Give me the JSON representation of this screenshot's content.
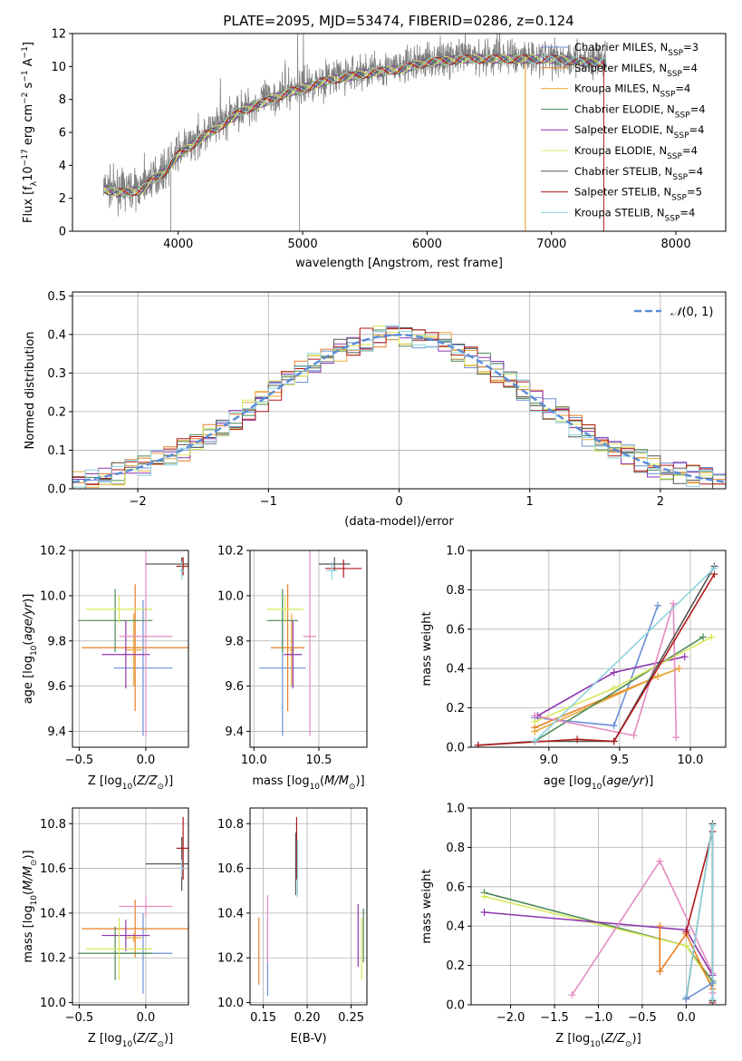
{
  "figure": {
    "title": "PLATE=2095, MJD=53474, FIBERID=0286, z=0.124"
  },
  "colors": {
    "chabrier_miles": "#6b8fd6",
    "salpeter_miles": "#e87e24",
    "kroupa_miles": "#e8a838",
    "chabrier_elodie": "#4d8a55",
    "salpeter_elodie": "#8e35b0",
    "kroupa_elodie": "#d9e85a",
    "chabrier_stelib": "#555555",
    "salpeter_stelib": "#b01818",
    "kroupa_stelib": "#8ed2dd",
    "pink": "#e58ac0",
    "data_gray": "#7f7f7f",
    "normal_curve": "#5b8ed8"
  },
  "chart_data": [
    {
      "id": "spectrum",
      "type": "line",
      "xlabel": "wavelength [Angstrom, rest frame]",
      "ylabel": "Flux [f_λ 10^-17 erg cm^-2 s^-1 A^-1]",
      "xlim": [
        3150,
        8400
      ],
      "ylim": [
        0,
        12
      ],
      "xticks": [
        4000,
        5000,
        6000,
        7000,
        8000
      ],
      "yticks": [
        0,
        2,
        4,
        6,
        8,
        10,
        12
      ],
      "legend_position": "right",
      "continuum": {
        "x": [
          3400,
          3500,
          3700,
          3800,
          3900,
          3950,
          4000,
          4100,
          4200,
          4300,
          4500,
          4700,
          4900,
          5000,
          5200,
          5500,
          5800,
          6000,
          6300,
          6600,
          7000,
          7300,
          7400
        ],
        "y": [
          2.7,
          2.5,
          2.6,
          3.3,
          3.8,
          4.3,
          4.8,
          5.3,
          5.9,
          6.3,
          7.4,
          8.0,
          8.6,
          8.8,
          9.3,
          9.7,
          10.0,
          10.4,
          10.6,
          10.6,
          10.6,
          10.4,
          10.4
        ]
      },
      "legend": [
        {
          "label": "Chabrier MILES, N_SSP=3",
          "base": "Chabrier MILES, N",
          "sub": "SSP",
          "tail": "=3",
          "color_key": "chabrier_miles"
        },
        {
          "label": "Salpeter MILES, N_SSP=4",
          "base": "Salpeter MILES, N",
          "sub": "SSP",
          "tail": "=4",
          "color_key": "salpeter_miles"
        },
        {
          "label": "Kroupa MILES, N_SSP=4",
          "base": "Kroupa MILES, N",
          "sub": "SSP",
          "tail": "=4",
          "color_key": "kroupa_miles"
        },
        {
          "label": "Chabrier ELODIE, N_SSP=4",
          "base": "Chabrier ELODIE, N",
          "sub": "SSP",
          "tail": "=4",
          "color_key": "chabrier_elodie"
        },
        {
          "label": "Salpeter ELODIE, N_SSP=4",
          "base": "Salpeter ELODIE, N",
          "sub": "SSP",
          "tail": "=4",
          "color_key": "salpeter_elodie"
        },
        {
          "label": "Kroupa ELODIE, N_SSP=4",
          "base": "Kroupa ELODIE, N",
          "sub": "SSP",
          "tail": "=4",
          "color_key": "kroupa_elodie"
        },
        {
          "label": "Chabrier STELIB, N_SSP=4",
          "base": "Chabrier STELIB, N",
          "sub": "SSP",
          "tail": "=4",
          "color_key": "chabrier_stelib"
        },
        {
          "label": "Salpeter STELIB, N_SSP=5",
          "base": "Salpeter STELIB, N",
          "sub": "SSP",
          "tail": "=5",
          "color_key": "salpeter_stelib"
        },
        {
          "label": "Kroupa STELIB, N_SSP=4",
          "base": "Kroupa STELIB, N",
          "sub": "SSP",
          "tail": "=4",
          "color_key": "kroupa_stelib"
        }
      ]
    },
    {
      "id": "residuals",
      "type": "histogram",
      "xlabel": "(data-model)/error",
      "ylabel": "Normed distribution",
      "xlim": [
        -2.5,
        2.5
      ],
      "ylim": [
        0,
        0.51
      ],
      "xticks": [
        -2,
        -1,
        0,
        1,
        2
      ],
      "yticks": [
        0.0,
        0.1,
        0.2,
        0.3,
        0.4,
        0.5
      ],
      "grid": true,
      "legend_position": "top-right",
      "legend": [
        {
          "label": "N(0, 1)",
          "color_key": "normal_curve"
        }
      ],
      "bin_width": 0.1,
      "normal_curve": {
        "mean": 0,
        "sigma": 1
      }
    },
    {
      "id": "age_vs_Z",
      "type": "errorbar",
      "xlabel": "Z [log10(Z/Z_sun)]",
      "ylabel": "age [log10(age/yr)]",
      "xlim": [
        -0.55,
        0.32
      ],
      "ylim": [
        9.33,
        10.2
      ],
      "xticks": [
        -0.5,
        0.0
      ],
      "yticks": [
        9.4,
        9.6,
        9.8,
        10.0,
        10.2
      ],
      "grid": true,
      "points": [
        {
          "color_key": "chabrier_miles",
          "x": -0.02,
          "xerr": 0.22,
          "y": 9.68,
          "yerr": 0.3
        },
        {
          "color_key": "salpeter_miles",
          "x": -0.08,
          "xerr": 0.4,
          "y": 9.77,
          "yerr": 0.28
        },
        {
          "color_key": "kroupa_miles",
          "x": -0.09,
          "xerr": 0.06,
          "y": 9.76,
          "yerr": 0.16
        },
        {
          "color_key": "chabrier_elodie",
          "x": -0.23,
          "xerr": 0.28,
          "y": 9.89,
          "yerr": 0.14
        },
        {
          "color_key": "salpeter_elodie",
          "x": -0.15,
          "xerr": 0.18,
          "y": 9.74,
          "yerr": 0.15
        },
        {
          "color_key": "kroupa_elodie",
          "x": -0.2,
          "xerr": 0.25,
          "y": 9.94,
          "yerr": 0.06
        },
        {
          "color_key": "pink",
          "x": -0.0,
          "xerr": 0.2,
          "y": 9.82,
          "yerr": 0.44
        },
        {
          "color_key": "chabrier_stelib",
          "x": 0.27,
          "xerr": 0.27,
          "y": 10.14,
          "yerr": 0.03
        },
        {
          "color_key": "salpeter_stelib",
          "x": 0.28,
          "xerr": 0.05,
          "y": 10.13,
          "yerr": 0.04
        },
        {
          "color_key": "kroupa_stelib",
          "x": 0.27,
          "xerr": 0.02,
          "y": 10.11,
          "yerr": 0.04
        }
      ]
    },
    {
      "id": "age_vs_mass",
      "type": "errorbar",
      "xlabel": "mass [log10(M/M_sun)]",
      "ylabel": "",
      "xlim": [
        9.97,
        10.87
      ],
      "ylim": [
        9.33,
        10.2
      ],
      "xticks": [
        10.0,
        10.5
      ],
      "yticks": [
        9.4,
        9.6,
        9.8,
        10.0,
        10.2
      ],
      "grid": true,
      "points": [
        {
          "color_key": "chabrier_miles",
          "x": 10.22,
          "xerr": 0.18,
          "y": 9.68,
          "yerr": 0.3
        },
        {
          "color_key": "salpeter_miles",
          "x": 10.26,
          "xerr": 0.13,
          "y": 9.77,
          "yerr": 0.28
        },
        {
          "color_key": "kroupa_miles",
          "x": 10.29,
          "xerr": 0.02,
          "y": 9.76,
          "yerr": 0.16
        },
        {
          "color_key": "chabrier_elodie",
          "x": 10.22,
          "xerr": 0.12,
          "y": 9.89,
          "yerr": 0.14
        },
        {
          "color_key": "salpeter_elodie",
          "x": 10.3,
          "xerr": 0.07,
          "y": 9.74,
          "yerr": 0.15
        },
        {
          "color_key": "kroupa_elodie",
          "x": 10.24,
          "xerr": 0.14,
          "y": 9.94,
          "yerr": 0.06
        },
        {
          "color_key": "pink",
          "x": 10.43,
          "xerr": 0.05,
          "y": 9.82,
          "yerr": 0.44
        },
        {
          "color_key": "chabrier_stelib",
          "x": 10.62,
          "xerr": 0.12,
          "y": 10.14,
          "yerr": 0.03
        },
        {
          "color_key": "salpeter_stelib",
          "x": 10.69,
          "xerr": 0.14,
          "y": 10.12,
          "yerr": 0.04
        },
        {
          "color_key": "kroupa_stelib",
          "x": 10.6,
          "xerr": 0.04,
          "y": 10.11,
          "yerr": 0.04
        }
      ]
    },
    {
      "id": "weight_vs_age",
      "type": "line",
      "xlabel": "age [log10(age/yr)]",
      "ylabel": "mass weight",
      "xlim": [
        8.45,
        10.25
      ],
      "ylim": [
        0.0,
        1.0
      ],
      "xticks": [
        9.0,
        9.5,
        10.0
      ],
      "yticks": [
        0.0,
        0.2,
        0.4,
        0.6,
        0.8,
        1.0
      ],
      "grid": true,
      "series": [
        {
          "color_key": "chabrier_miles",
          "x": [
            8.9,
            9.46,
            9.77
          ],
          "y": [
            0.15,
            0.11,
            0.72
          ]
        },
        {
          "color_key": "salpeter_miles",
          "x": [
            8.9,
            9.77,
            9.92
          ],
          "y": [
            0.1,
            0.36,
            0.4
          ]
        },
        {
          "color_key": "kroupa_miles",
          "x": [
            8.9,
            9.77,
            9.92
          ],
          "y": [
            0.08,
            0.36,
            0.4
          ]
        },
        {
          "color_key": "chabrier_elodie",
          "x": [
            8.9,
            10.09
          ],
          "y": [
            0.03,
            0.56
          ]
        },
        {
          "color_key": "salpeter_elodie",
          "x": [
            8.92,
            9.46,
            9.96
          ],
          "y": [
            0.16,
            0.38,
            0.46
          ]
        },
        {
          "color_key": "kroupa_elodie",
          "x": [
            8.9,
            9.46,
            10.15
          ],
          "y": [
            0.13,
            0.3,
            0.56
          ]
        },
        {
          "color_key": "pink",
          "x": [
            8.9,
            9.6,
            9.88,
            9.9
          ],
          "y": [
            0.16,
            0.06,
            0.73,
            0.05
          ]
        },
        {
          "color_key": "chabrier_stelib",
          "x": [
            8.5,
            8.9,
            9.46,
            10.17
          ],
          "y": [
            0.01,
            0.03,
            0.03,
            0.92
          ]
        },
        {
          "color_key": "salpeter_stelib",
          "x": [
            8.5,
            9.2,
            9.46,
            10.17
          ],
          "y": [
            0.01,
            0.04,
            0.03,
            0.88
          ]
        },
        {
          "color_key": "kroupa_stelib",
          "x": [
            8.9,
            10.17
          ],
          "y": [
            0.03,
            0.91
          ]
        }
      ]
    },
    {
      "id": "mass_vs_Z",
      "type": "errorbar",
      "xlabel": "Z [log10(Z/Z_sun)]",
      "ylabel": "mass [log10(M/M_sun)]",
      "xlim": [
        -0.55,
        0.32
      ],
      "ylim": [
        9.99,
        10.87
      ],
      "xticks": [
        -0.5,
        0.0
      ],
      "yticks": [
        10.0,
        10.2,
        10.4,
        10.6,
        10.8
      ],
      "grid": true,
      "points": [
        {
          "color_key": "chabrier_miles",
          "x": -0.02,
          "xerr": 0.22,
          "y": 10.22,
          "yerr": 0.18
        },
        {
          "color_key": "salpeter_miles",
          "x": -0.08,
          "xerr": 0.4,
          "y": 10.33,
          "yerr": 0.13
        },
        {
          "color_key": "kroupa_miles",
          "x": -0.09,
          "xerr": 0.06,
          "y": 10.29,
          "yerr": 0.02
        },
        {
          "color_key": "chabrier_elodie",
          "x": -0.23,
          "xerr": 0.28,
          "y": 10.22,
          "yerr": 0.12
        },
        {
          "color_key": "salpeter_elodie",
          "x": -0.15,
          "xerr": 0.18,
          "y": 10.3,
          "yerr": 0.07
        },
        {
          "color_key": "kroupa_elodie",
          "x": -0.2,
          "xerr": 0.25,
          "y": 10.24,
          "yerr": 0.14
        },
        {
          "color_key": "pink",
          "x": -0.0,
          "xerr": 0.2,
          "y": 10.43,
          "yerr": 0.05
        },
        {
          "color_key": "chabrier_stelib",
          "x": 0.27,
          "xerr": 0.27,
          "y": 10.62,
          "yerr": 0.12
        },
        {
          "color_key": "salpeter_stelib",
          "x": 0.28,
          "xerr": 0.05,
          "y": 10.69,
          "yerr": 0.14
        },
        {
          "color_key": "kroupa_stelib",
          "x": 0.27,
          "xerr": 0.02,
          "y": 10.6,
          "yerr": 0.04
        }
      ]
    },
    {
      "id": "mass_vs_ebv",
      "type": "errorbar",
      "xlabel": "E(B-V)",
      "ylabel": "",
      "xlim": [
        0.135,
        0.268
      ],
      "ylim": [
        9.99,
        10.87
      ],
      "xticks": [
        0.15,
        0.2,
        0.25
      ],
      "yticks": [
        10.0,
        10.2,
        10.4,
        10.6,
        10.8
      ],
      "grid": true,
      "points": [
        {
          "color_key": "salpeter_miles",
          "x": 0.145,
          "xerr": 0,
          "y": 10.23,
          "yerr": 0.15
        },
        {
          "color_key": "chabrier_miles",
          "x": 0.155,
          "xerr": 0,
          "y": 10.2,
          "yerr": 0.17
        },
        {
          "color_key": "pink",
          "x": 0.155,
          "xerr": 0,
          "y": 10.33,
          "yerr": 0.15
        },
        {
          "color_key": "chabrier_stelib",
          "x": 0.187,
          "xerr": 0,
          "y": 10.62,
          "yerr": 0.14
        },
        {
          "color_key": "salpeter_stelib",
          "x": 0.188,
          "xerr": 0,
          "y": 10.69,
          "yerr": 0.14
        },
        {
          "color_key": "kroupa_stelib",
          "x": 0.189,
          "xerr": 0,
          "y": 10.6,
          "yerr": 0.13
        },
        {
          "color_key": "salpeter_elodie",
          "x": 0.258,
          "xerr": 0,
          "y": 10.3,
          "yerr": 0.14
        },
        {
          "color_key": "kroupa_elodie",
          "x": 0.262,
          "xerr": 0,
          "y": 10.24,
          "yerr": 0.14
        },
        {
          "color_key": "chabrier_elodie",
          "x": 0.264,
          "xerr": 0,
          "y": 10.3,
          "yerr": 0.12
        }
      ]
    },
    {
      "id": "weight_vs_Z",
      "type": "line",
      "xlabel": "Z [log10(Z/Z_sun)]",
      "ylabel": "mass weight",
      "xlim": [
        -2.45,
        0.45
      ],
      "ylim": [
        0.0,
        1.0
      ],
      "xticks": [
        -2.0,
        -1.5,
        -1.0,
        -0.5,
        0.0
      ],
      "yticks": [
        0.0,
        0.2,
        0.4,
        0.6,
        0.8,
        1.0
      ],
      "grid": true,
      "series": [
        {
          "color_key": "chabrier_elodie",
          "x": [
            -2.3,
            0.0,
            0.3
          ],
          "y": [
            0.57,
            0.3,
            0.12
          ]
        },
        {
          "color_key": "kroupa_elodie",
          "x": [
            -2.3,
            0.0,
            0.3
          ],
          "y": [
            0.55,
            0.3,
            0.1
          ]
        },
        {
          "color_key": "salpeter_elodie",
          "x": [
            -2.3,
            0.0,
            0.3
          ],
          "y": [
            0.47,
            0.38,
            0.15
          ]
        },
        {
          "color_key": "pink",
          "x": [
            -1.3,
            -0.3,
            0.3,
            0.3
          ],
          "y": [
            0.05,
            0.73,
            0.16,
            0.06
          ]
        },
        {
          "color_key": "salpeter_miles",
          "x": [
            -0.3,
            -0.3,
            0.0,
            0.3
          ],
          "y": [
            0.4,
            0.17,
            0.36,
            0.08
          ]
        },
        {
          "color_key": "salpeter_stelib",
          "x": [
            0.0,
            0.3,
            0.3
          ],
          "y": [
            0.37,
            0.88,
            0.01
          ]
        },
        {
          "color_key": "chabrier_stelib",
          "x": [
            0.0,
            0.0,
            0.3,
            0.3
          ],
          "y": [
            0.03,
            0.03,
            0.92,
            0.02
          ]
        },
        {
          "color_key": "kroupa_stelib",
          "x": [
            0.0,
            0.3,
            0.3
          ],
          "y": [
            0.04,
            0.91,
            0.03
          ]
        },
        {
          "color_key": "chabrier_miles",
          "x": [
            0.0,
            0.3
          ],
          "y": [
            0.03,
            0.11
          ]
        }
      ]
    }
  ]
}
